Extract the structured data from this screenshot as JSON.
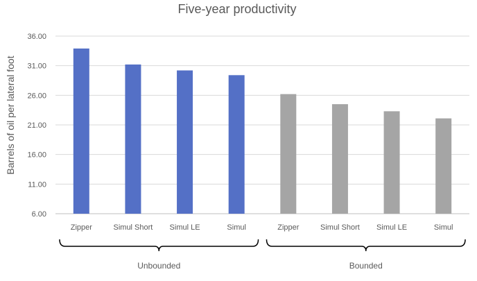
{
  "chart_data": {
    "type": "bar",
    "title": "Five-year productivity",
    "ylabel": "Barrels of oil per lateral foot",
    "xlabel": "",
    "ylim": [
      6,
      36
    ],
    "yticks": [
      "6.00",
      "11.00",
      "16.00",
      "21.00",
      "26.00",
      "31.00",
      "36.00"
    ],
    "categories": [
      "Zipper",
      "Simul Short",
      "Simul LE",
      "Simul",
      "Zipper",
      "Simul Short",
      "Simul LE",
      "Simul"
    ],
    "values": [
      33.9,
      31.2,
      30.2,
      29.4,
      26.2,
      24.5,
      23.3,
      22.1
    ],
    "groups": [
      {
        "label": "Unbounded",
        "start": 0,
        "end": 3,
        "color": "#5470c6"
      },
      {
        "label": "Bounded",
        "start": 4,
        "end": 7,
        "color": "#a5a5a5"
      }
    ],
    "grid": true,
    "legend": "none"
  }
}
